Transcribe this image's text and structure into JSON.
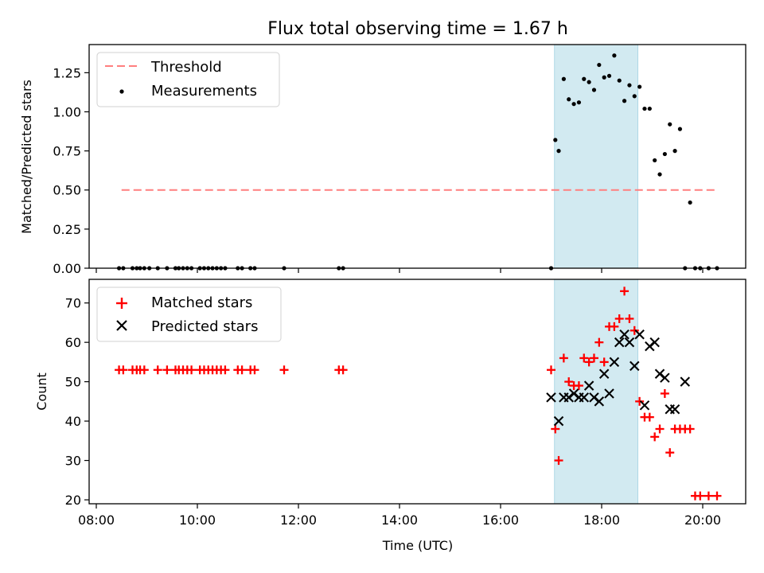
{
  "title": "Flux total observing time = 1.67 h",
  "colors": {
    "threshold": "#ff7f7f",
    "measurement": "#000000",
    "matched": "#ff0000",
    "predicted": "#000000",
    "shade": "#add8e6"
  },
  "chart_data": [
    {
      "type": "scatter",
      "panel": "top",
      "ylabel": "Matched/Predicted stars",
      "ylim": [
        0,
        1.43
      ],
      "yticks": [
        0.0,
        0.25,
        0.5,
        0.75,
        1.0,
        1.25
      ],
      "ytick_labels": [
        "0.00",
        "0.25",
        "0.50",
        "0.75",
        "1.00",
        "1.25"
      ],
      "xlim": [
        "08:00 -0.15h",
        "20:55"
      ],
      "legend_position": "upper left",
      "legend": [
        {
          "label": "Threshold",
          "style": "dashed-line"
        },
        {
          "label": "Measurements",
          "style": "dot"
        }
      ],
      "threshold": {
        "value": 0.5,
        "x_start": "08:30",
        "x_end": "20:18"
      },
      "shaded_span": {
        "start": "17:04",
        "end": "18:43"
      },
      "series": [
        {
          "name": "Measurements",
          "x": [
            "08:27",
            "08:32",
            "08:43",
            "08:48",
            "08:52",
            "08:57",
            "09:03",
            "09:13",
            "09:24",
            "09:34",
            "09:38",
            "09:43",
            "09:48",
            "09:53",
            "10:03",
            "10:08",
            "10:13",
            "10:18",
            "10:23",
            "10:28",
            "10:33",
            "10:48",
            "10:53",
            "11:03",
            "11:08",
            "11:43",
            "12:48",
            "12:53",
            "17:00",
            "17:05",
            "17:09",
            "17:15",
            "17:21",
            "17:27",
            "17:33",
            "17:39",
            "17:45",
            "17:51",
            "17:57",
            "18:03",
            "18:09",
            "18:15",
            "18:21",
            "18:27",
            "18:33",
            "18:39",
            "18:45",
            "18:51",
            "18:57",
            "19:03",
            "19:09",
            "19:15",
            "19:21",
            "19:27",
            "19:33",
            "19:39",
            "19:45",
            "19:51",
            "19:57",
            "20:07",
            "20:17"
          ],
          "y": [
            0,
            0,
            0,
            0,
            0,
            0,
            0,
            0,
            0,
            0,
            0,
            0,
            0,
            0,
            0,
            0,
            0,
            0,
            0,
            0,
            0,
            0,
            0,
            0,
            0,
            0,
            0,
            0,
            0,
            0.82,
            0.75,
            1.21,
            1.08,
            1.05,
            1.06,
            1.21,
            1.19,
            1.14,
            1.3,
            1.22,
            1.23,
            1.36,
            1.2,
            1.07,
            1.17,
            1.1,
            1.16,
            1.02,
            1.02,
            0.69,
            0.6,
            0.73,
            0.92,
            0.75,
            0.89,
            0,
            0.42,
            0,
            0,
            0,
            0
          ]
        }
      ]
    },
    {
      "type": "scatter",
      "panel": "bottom",
      "ylabel": "Count",
      "xlabel": "Time (UTC)",
      "ylim": [
        19,
        76
      ],
      "yticks": [
        20,
        30,
        40,
        50,
        60,
        70
      ],
      "ytick_labels": [
        "20",
        "30",
        "40",
        "50",
        "60",
        "70"
      ],
      "xticks": [
        "08:00",
        "10:00",
        "12:00",
        "14:00",
        "16:00",
        "18:00",
        "20:00"
      ],
      "legend_position": "upper left",
      "legend": [
        {
          "label": "Matched stars",
          "style": "plus"
        },
        {
          "label": "Predicted stars",
          "style": "x"
        }
      ],
      "shaded_span": {
        "start": "17:04",
        "end": "18:43"
      },
      "series": [
        {
          "name": "Matched stars",
          "x": [
            "08:27",
            "08:32",
            "08:43",
            "08:48",
            "08:52",
            "08:57",
            "09:13",
            "09:24",
            "09:34",
            "09:38",
            "09:43",
            "09:48",
            "09:53",
            "10:03",
            "10:08",
            "10:13",
            "10:18",
            "10:23",
            "10:28",
            "10:33",
            "10:48",
            "10:53",
            "11:03",
            "11:08",
            "11:43",
            "12:48",
            "12:53",
            "17:00",
            "17:05",
            "17:09",
            "17:15",
            "17:21",
            "17:27",
            "17:33",
            "17:39",
            "17:45",
            "17:51",
            "17:57",
            "18:03",
            "18:09",
            "18:15",
            "18:21",
            "18:27",
            "18:33",
            "18:39",
            "18:45",
            "18:51",
            "18:57",
            "19:03",
            "19:09",
            "19:15",
            "19:21",
            "19:27",
            "19:33",
            "19:39",
            "19:45",
            "19:51",
            "19:57",
            "20:07",
            "20:17"
          ],
          "y": [
            53,
            53,
            53,
            53,
            53,
            53,
            53,
            53,
            53,
            53,
            53,
            53,
            53,
            53,
            53,
            53,
            53,
            53,
            53,
            53,
            53,
            53,
            53,
            53,
            53,
            53,
            53,
            53,
            38,
            30,
            56,
            50,
            49,
            49,
            56,
            55,
            56,
            60,
            55,
            64,
            64,
            66,
            73,
            66,
            63,
            45,
            41,
            41,
            36,
            38,
            47,
            32,
            38,
            38,
            38,
            38,
            21,
            21,
            21,
            21
          ]
        },
        {
          "name": "Predicted stars",
          "x": [
            "17:00",
            "17:09",
            "17:15",
            "17:21",
            "17:27",
            "17:33",
            "17:39",
            "17:45",
            "17:51",
            "17:57",
            "18:03",
            "18:09",
            "18:15",
            "18:21",
            "18:27",
            "18:33",
            "18:39",
            "18:45",
            "18:51",
            "18:57",
            "19:03",
            "19:09",
            "19:15",
            "19:21",
            "19:27",
            "19:39"
          ],
          "y": [
            46,
            40,
            46,
            46,
            47,
            46,
            46,
            49,
            46,
            45,
            52,
            47,
            55,
            60,
            62,
            60,
            54,
            62,
            44,
            59,
            60,
            52,
            51,
            43,
            43,
            50
          ]
        }
      ]
    }
  ]
}
